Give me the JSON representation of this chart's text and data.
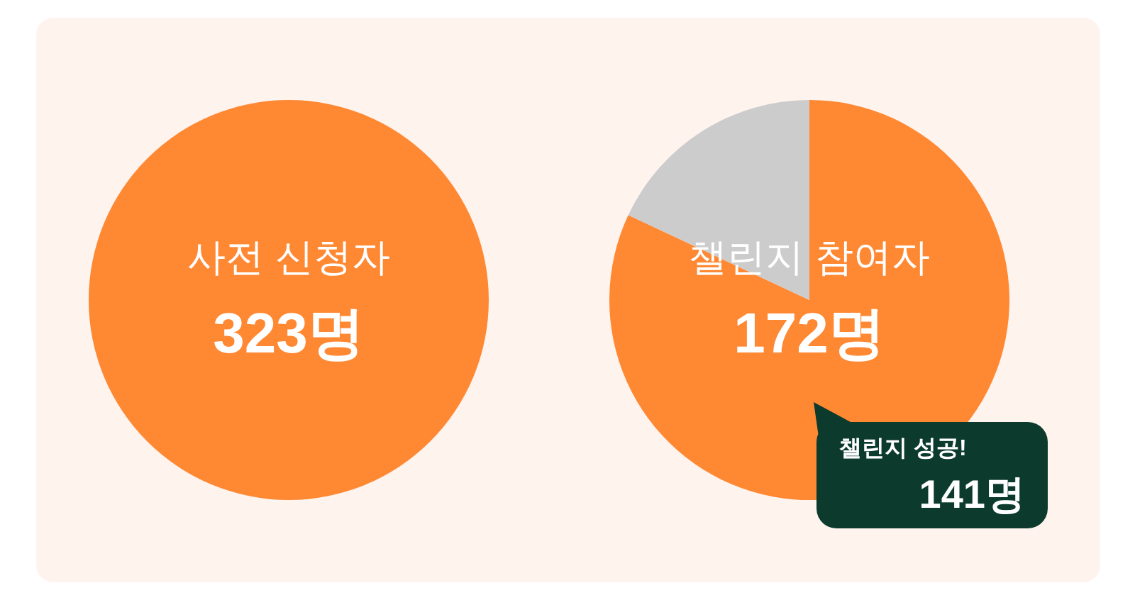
{
  "chart_data": [
    {
      "type": "pie",
      "title": "사전 신청자",
      "annotations": [
        "323명"
      ],
      "categories": [
        null
      ],
      "values": [
        100
      ],
      "colors": [
        "#ff8833"
      ]
    },
    {
      "type": "pie",
      "title": "챌린지 참여자",
      "annotations": [
        "172명"
      ],
      "categories": [
        "챌린지 성공!",
        null
      ],
      "values": [
        141,
        31
      ],
      "colors": [
        "#ff8833",
        "#cccccc"
      ],
      "value_labels": [
        "141명",
        null
      ]
    }
  ]
}
